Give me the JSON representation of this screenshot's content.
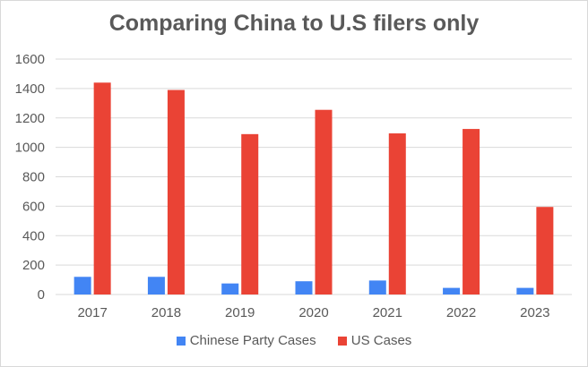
{
  "colors": {
    "chinese": "#4285f4",
    "us": "#ea4335",
    "grid": "#d9d9d9",
    "text": "#595959"
  },
  "chart_data": {
    "type": "bar",
    "title": "Comparing China to U.S filers only",
    "xlabel": "",
    "ylabel": "",
    "categories": [
      "2017",
      "2018",
      "2019",
      "2020",
      "2021",
      "2022",
      "2023"
    ],
    "series": [
      {
        "name": "Chinese Party Cases",
        "values": [
          120,
          120,
          75,
          90,
          95,
          45,
          45
        ]
      },
      {
        "name": "US Cases",
        "values": [
          1440,
          1390,
          1090,
          1255,
          1095,
          1125,
          595
        ]
      }
    ],
    "ylim": [
      0,
      1600
    ],
    "yticks": [
      "0",
      "200",
      "400",
      "600",
      "800",
      "1000",
      "1200",
      "1400",
      "1600"
    ],
    "grid": true,
    "legend_position": "bottom"
  }
}
